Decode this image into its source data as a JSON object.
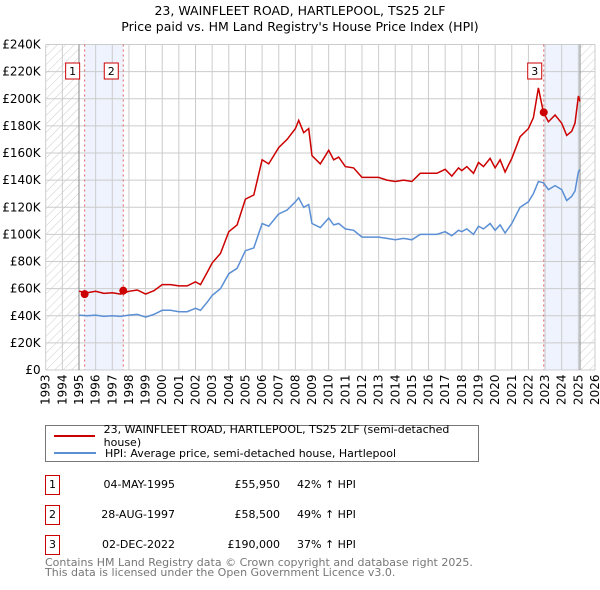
{
  "chart_data": {
    "type": "line",
    "title": "23, WAINFLEET ROAD, HARTLEPOOL, TS25 2LF",
    "subtitle": "Price paid vs. HM Land Registry's House Price Index (HPI)",
    "xlim": [
      1993,
      2026
    ],
    "ylim": [
      0,
      240000
    ],
    "x_ticks": [
      "1993",
      "1994",
      "1995",
      "1996",
      "1997",
      "1998",
      "1999",
      "2000",
      "2001",
      "2002",
      "2003",
      "2004",
      "2005",
      "2006",
      "2007",
      "2008",
      "2009",
      "2010",
      "2011",
      "2012",
      "2013",
      "2014",
      "2015",
      "2016",
      "2017",
      "2018",
      "2019",
      "2020",
      "2021",
      "2022",
      "2023",
      "2024",
      "2025",
      "2026"
    ],
    "y_ticks": [
      "£0",
      "£20K",
      "£40K",
      "£60K",
      "£80K",
      "£100K",
      "£120K",
      "£140K",
      "£160K",
      "£180K",
      "£200K",
      "£220K",
      "£240K"
    ],
    "grid": true,
    "hatched_ranges": [
      [
        1993,
        1995.0
      ],
      [
        2025.1,
        2026
      ]
    ],
    "shaded_ranges": [
      [
        1995.34,
        1997.66
      ],
      [
        2022.92,
        2025.1
      ]
    ],
    "x": [
      1995.0,
      1995.5,
      1996,
      1996.5,
      1997,
      1997.5,
      1998,
      1998.5,
      1999,
      1999.5,
      2000,
      2000.5,
      2001,
      2001.5,
      2002,
      2002.3,
      2002.7,
      2003,
      2003.5,
      2004,
      2004.5,
      2005,
      2005.5,
      2006,
      2006.4,
      2007,
      2007.5,
      2008,
      2008.2,
      2008.5,
      2008.8,
      2009,
      2009.5,
      2010,
      2010.3,
      2010.6,
      2011,
      2011.5,
      2012,
      2012.5,
      2013,
      2013.5,
      2014,
      2014.5,
      2015,
      2015.5,
      2016,
      2016.5,
      2017,
      2017.4,
      2017.8,
      2018,
      2018.3,
      2018.7,
      2019,
      2019.3,
      2019.7,
      2020,
      2020.3,
      2020.6,
      2021,
      2021.5,
      2022,
      2022.3,
      2022.6,
      2022.9,
      2023.2,
      2023.6,
      2024,
      2024.3,
      2024.6,
      2024.8,
      2025,
      2025.1
    ],
    "series": [
      {
        "name": "23, WAINFLEET ROAD, HARTLEPOOL, TS25 2LF (semi-detached house)",
        "color": "#cc0000",
        "values": [
          58,
          57,
          58,
          56.5,
          57,
          56,
          58,
          59,
          56,
          58.5,
          63,
          63,
          62,
          62,
          65,
          63,
          72,
          79,
          86,
          102,
          107,
          126,
          129,
          155,
          152,
          164,
          170,
          178,
          184,
          175,
          178,
          158,
          152,
          162,
          155,
          157,
          150,
          149,
          142,
          142,
          142,
          140,
          139,
          140,
          139,
          145,
          145,
          145,
          148,
          143,
          149,
          147,
          150,
          145,
          153,
          150,
          156,
          149,
          155,
          146,
          156,
          172,
          178,
          186,
          208,
          190,
          183,
          188,
          182,
          173,
          176,
          182,
          202,
          198
        ]
      },
      {
        "name": "HPI: Average price, semi-detached house, Hartlepool",
        "color": "#5b8fd4",
        "values": [
          40.5,
          40,
          40.5,
          39.5,
          40,
          39.5,
          40.5,
          41,
          39,
          41,
          44,
          44,
          43,
          43,
          45.5,
          44,
          50,
          55,
          60,
          71,
          75,
          88,
          90,
          108,
          106,
          115,
          118,
          124,
          127,
          120,
          122,
          108,
          105,
          112,
          107,
          108,
          104,
          103,
          98,
          98,
          98,
          97,
          96,
          97,
          96,
          100,
          100,
          100,
          102,
          99,
          103,
          102,
          104,
          100,
          106,
          104,
          108,
          103,
          107,
          101,
          108,
          120,
          124,
          130,
          139,
          138,
          133,
          136,
          133,
          125,
          128,
          132,
          146,
          148
        ]
      }
    ],
    "value_unit": "thousand GBP",
    "sales": [
      {
        "label": "1",
        "x": 1995.34,
        "value": 55.95
      },
      {
        "label": "2",
        "x": 1997.66,
        "value": 58.5
      },
      {
        "label": "3",
        "x": 2022.92,
        "value": 190
      }
    ],
    "legend_placement": "below"
  },
  "legend": [
    {
      "label": "23, WAINFLEET ROAD, HARTLEPOOL, TS25 2LF (semi-detached house)",
      "color": "#cc0000"
    },
    {
      "label": "HPI: Average price, semi-detached house, Hartlepool",
      "color": "#5b8fd4"
    }
  ],
  "transactions": [
    {
      "num": "1",
      "date": "04-MAY-1995",
      "price": "£55,950",
      "hpi": "42% ↑ HPI"
    },
    {
      "num": "2",
      "date": "28-AUG-1997",
      "price": "£58,500",
      "hpi": "49% ↑ HPI"
    },
    {
      "num": "3",
      "date": "02-DEC-2022",
      "price": "£190,000",
      "hpi": "37% ↑ HPI"
    }
  ],
  "footer": {
    "line1": "Contains HM Land Registry data © Crown copyright and database right 2025.",
    "line2": "This data is licensed under the Open Government Licence v3.0."
  }
}
